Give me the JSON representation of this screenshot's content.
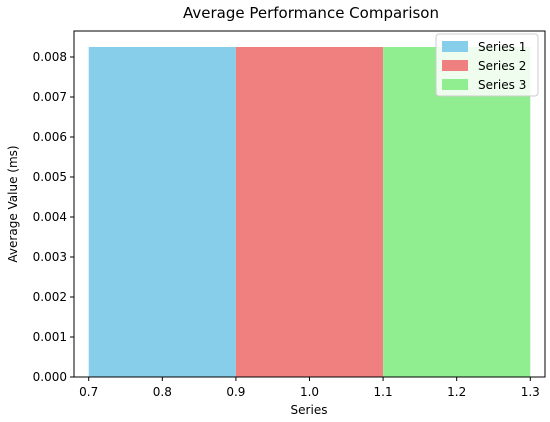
{
  "chart_data": {
    "type": "bar",
    "title": "Average Performance Comparison",
    "xlabel": "Series",
    "ylabel": "Average Value (ms)",
    "xlim": [
      0.68,
      1.32
    ],
    "ylim": [
      0.0,
      0.00865
    ],
    "xticks": [
      0.7,
      0.8,
      0.9,
      1.0,
      1.1,
      1.2,
      1.3
    ],
    "xtick_labels": [
      "0.7",
      "0.8",
      "0.9",
      "1.0",
      "1.1",
      "1.2",
      "1.3"
    ],
    "yticks": [
      0.0,
      0.001,
      0.002,
      0.003,
      0.004,
      0.005,
      0.006,
      0.007,
      0.008
    ],
    "ytick_labels": [
      "0.000",
      "0.001",
      "0.002",
      "0.003",
      "0.004",
      "0.005",
      "0.006",
      "0.007",
      "0.008"
    ],
    "grid": false,
    "legend_position": "top-right",
    "series": [
      {
        "name": "Series 1",
        "x_start": 0.7,
        "x_end": 0.9,
        "value": 0.00825,
        "color": "#87ceeb"
      },
      {
        "name": "Series 2",
        "x_start": 0.9,
        "x_end": 1.1,
        "value": 0.00825,
        "color": "#f08080"
      },
      {
        "name": "Series 3",
        "x_start": 1.1,
        "x_end": 1.3,
        "value": 0.00825,
        "color": "#90ee90"
      }
    ]
  }
}
